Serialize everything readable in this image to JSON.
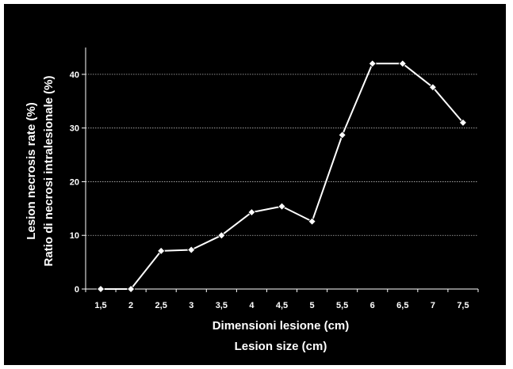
{
  "chart_data": {
    "type": "line",
    "xlabel": "Dimensioni lesione (cm)",
    "xlabel_2": "Lesion size (cm)",
    "ylabel": "Lesion necrosis rate (%)",
    "ylabel_2": "Ratio di necrosi intralesionale (%)",
    "ylim": [
      0,
      45
    ],
    "grid": true,
    "legend": "none",
    "categories": [
      "1,5",
      "2",
      "2,5",
      "3",
      "3,5",
      "4",
      "4,5",
      "5",
      "5,5",
      "6",
      "6,5",
      "7",
      "7,5"
    ],
    "y_ticks": [
      "0",
      "10",
      "20",
      "30",
      "40"
    ],
    "series": [
      {
        "values": [
          0,
          0,
          7.1,
          7.3,
          10,
          14.3,
          15.4,
          12.6,
          28.7,
          42,
          42,
          37.6,
          31
        ]
      }
    ],
    "colors": {
      "background": "#000000",
      "line": "#ffffff",
      "marker": "#ffffff",
      "grid": "#bbbbbb",
      "text": "#ffffff"
    }
  }
}
